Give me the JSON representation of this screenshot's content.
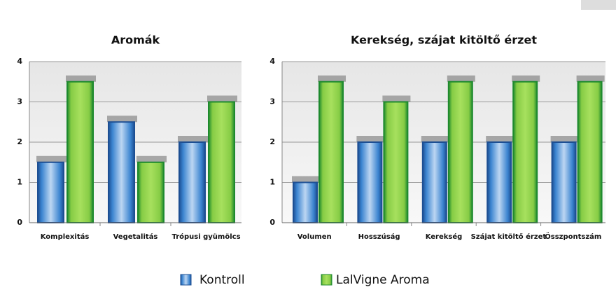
{
  "chart_data": [
    {
      "type": "bar",
      "title": "Aromák",
      "categories": [
        "Komplexitás",
        "Vegetalitás",
        "Trópusi gyümölcs"
      ],
      "series": [
        {
          "name": "Kontroll",
          "color": "#2e6db8",
          "values": [
            1.5,
            2.5,
            2
          ]
        },
        {
          "name": "LalVigne Aroma",
          "color": "#8fd04a",
          "values": [
            3.5,
            1.5,
            3
          ]
        }
      ],
      "ylim": [
        0,
        4
      ],
      "yticks": [
        0,
        1,
        2,
        3,
        4
      ],
      "grid": true
    },
    {
      "type": "bar",
      "title": "Kerekség, szájat kitöltő érzet",
      "categories": [
        "Volumen",
        "Hosszúság",
        "Kerekség",
        "Szájat kitöltő érzet",
        "Összpontszám"
      ],
      "series": [
        {
          "name": "Kontroll",
          "color": "#2e6db8",
          "values": [
            1,
            2,
            2,
            2,
            2
          ]
        },
        {
          "name": "LalVigne Aroma",
          "color": "#8fd04a",
          "values": [
            3.5,
            3,
            3.5,
            3.5,
            3.5
          ]
        }
      ],
      "ylim": [
        0,
        4
      ],
      "yticks": [
        0,
        1,
        2,
        3,
        4
      ],
      "grid": true
    }
  ]
}
